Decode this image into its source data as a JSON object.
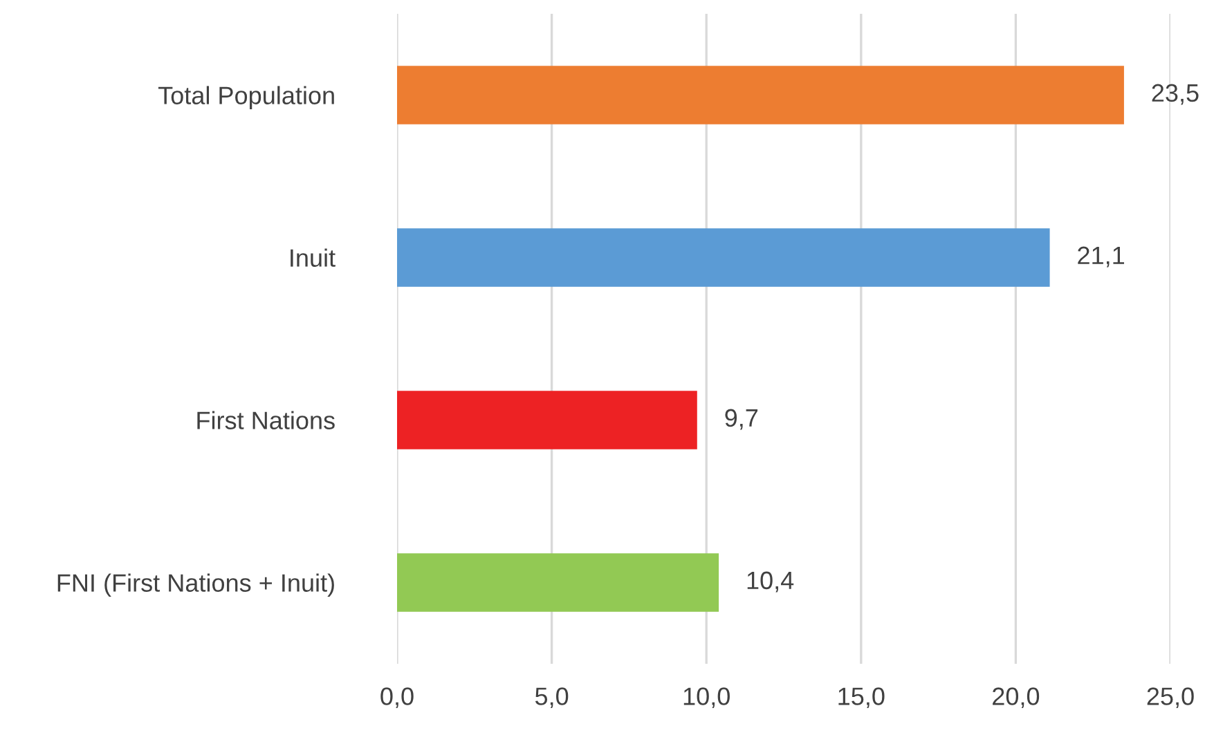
{
  "chart_data": {
    "type": "bar",
    "orientation": "horizontal",
    "categories": [
      "Total Population",
      "Inuit",
      "First Nations",
      "FNI (First Nations + Inuit)"
    ],
    "values": [
      23.5,
      21.1,
      9.7,
      10.4
    ],
    "colors": [
      "#ed7d31",
      "#5b9bd5",
      "#ed2224",
      "#92c954"
    ],
    "value_labels": [
      "23,5",
      "21,1",
      "9,7",
      "10,4"
    ],
    "xlim": [
      0,
      25
    ],
    "xticks": [
      {
        "value": 0,
        "label": "0,0"
      },
      {
        "value": 5,
        "label": "5,0"
      },
      {
        "value": 10,
        "label": "10,0"
      },
      {
        "value": 15,
        "label": "15,0"
      },
      {
        "value": 20,
        "label": "20,0"
      },
      {
        "value": 25,
        "label": "25,0"
      }
    ],
    "grid": "x",
    "legend": false
  }
}
